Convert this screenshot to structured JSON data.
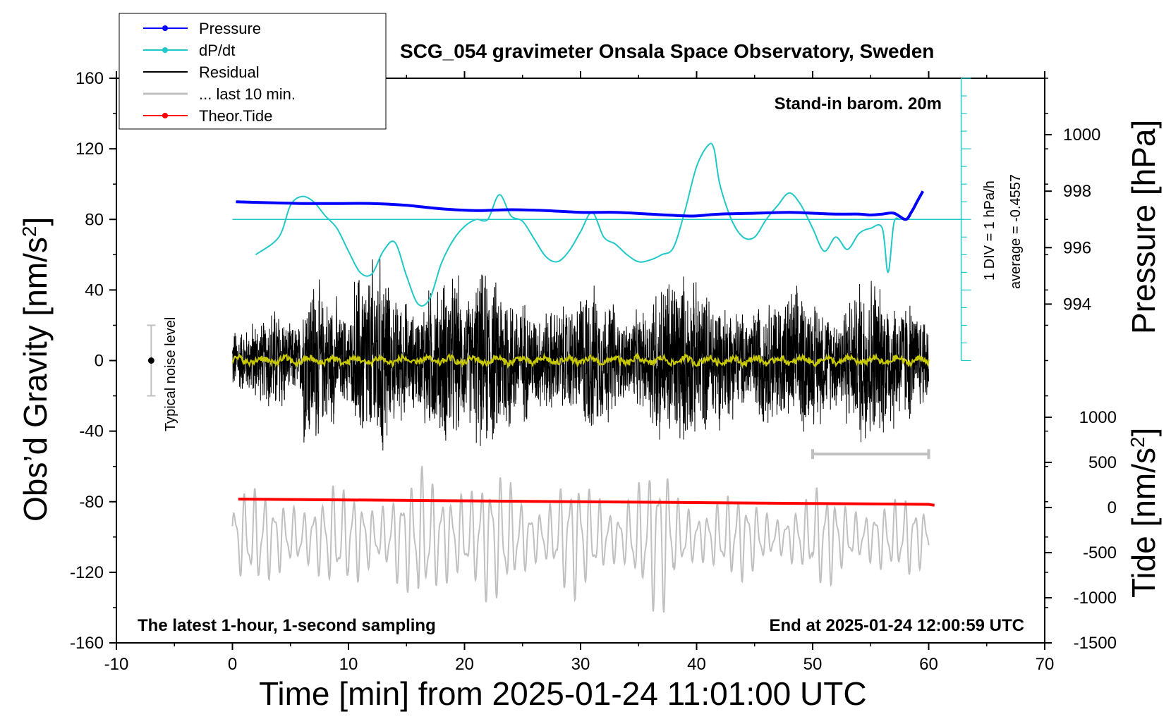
{
  "chart_data": {
    "type": "line",
    "title": "SCG_054 gravimeter Onsala Space Observatory, Sweden",
    "xlabel": "Time [min] from 2025-01-24 11:01:00 UTC",
    "ylabel_left": "Obs’d Gravity [nm/s",
    "ylabel_left_sup": "2",
    "ylabel_left_tail": "]",
    "ylabel_right_pressure": "Pressure [hPa]",
    "ylabel_right_tide": "Tide [nm/s",
    "ylabel_right_tide_sup": "2",
    "ylabel_right_tide_tail": "]",
    "xlim": [
      -10,
      70
    ],
    "ylim": [
      -160,
      160
    ],
    "x_ticks": [
      "-10",
      "0",
      "10",
      "20",
      "30",
      "40",
      "50",
      "60",
      "70"
    ],
    "y_ticks": [
      "160",
      "120",
      "80",
      "40",
      "0",
      "-40",
      "-80",
      "-120",
      "-160"
    ],
    "pressure_axis": {
      "range_in_gravity_units": [
        0,
        160
      ],
      "pressure_range": [
        992,
        1002
      ],
      "ticks": [
        "1000",
        "998",
        "996",
        "994"
      ]
    },
    "tide_axis": {
      "range_in_gravity_units": [
        -160,
        -27
      ],
      "tide_range": [
        -1500,
        1100
      ],
      "ticks": [
        "1000",
        "500",
        "0",
        "-500",
        "-1000",
        "-1500"
      ]
    },
    "annotations": {
      "barometer": "Stand-in barom. 20m",
      "latest": "The latest 1-hour, 1-second sampling",
      "end_time": "End at 2025-01-24 12:00:59 UTC",
      "noise": "Typical noise level",
      "div": "1 DIV = 1 hPa/h",
      "average": "average = -0.4557"
    },
    "legend": [
      {
        "label": "Pressure",
        "color": "#0000ff",
        "style": "line-dot"
      },
      {
        "label": "dP/dt",
        "color": "#20c8c8",
        "style": "line-dot"
      },
      {
        "label": "Residual",
        "color": "#000000",
        "style": "line"
      },
      {
        "label": "... last 10 min.",
        "color": "#c0c0c0",
        "style": "line"
      },
      {
        "label": "Theor.Tide",
        "color": "#ff0000",
        "style": "line-dot"
      }
    ],
    "noise_bar": {
      "x": -7,
      "center": 0,
      "half_range": 20
    },
    "last10_bar": {
      "x_start": 50,
      "x_end": 60,
      "y": -53
    },
    "pressure_baseline_y": 80,
    "series": [
      {
        "name": "Pressure",
        "color": "#0000ff",
        "unit": "gravity-axis units",
        "x": [
          0.3,
          3,
          6,
          9,
          12,
          15,
          18,
          21,
          24,
          27,
          30,
          33,
          36,
          39,
          40,
          42,
          45,
          48,
          50,
          52,
          54,
          55,
          56,
          57,
          58,
          58.5,
          59,
          59.5
        ],
        "y": [
          90,
          89.5,
          89,
          89,
          89,
          88,
          86,
          85,
          85.5,
          85,
          84,
          84,
          83,
          82,
          82,
          83,
          83.5,
          84,
          83.5,
          83,
          83,
          82.5,
          83,
          83.5,
          80,
          84,
          90,
          96
        ]
      },
      {
        "name": "dP/dt",
        "color": "#20c8c8",
        "unit": "gravity-axis units",
        "x": [
          2,
          4,
          5,
          6,
          7,
          8,
          9,
          10,
          11,
          12,
          13,
          14,
          15,
          16,
          17,
          18,
          19,
          20,
          21,
          22,
          23,
          24,
          25,
          26,
          27,
          28,
          29,
          30,
          31,
          32,
          33,
          34,
          35,
          36,
          37,
          38,
          39,
          40,
          41,
          41.5,
          42,
          43,
          44,
          45,
          46,
          47,
          48,
          49,
          50,
          51,
          52,
          53,
          54,
          55,
          56,
          56.5,
          57,
          57.5
        ],
        "y": [
          60,
          70,
          88,
          93,
          90,
          82,
          75,
          62,
          50,
          49,
          62,
          67,
          48,
          32,
          35,
          55,
          68,
          76,
          80,
          80,
          94,
          82,
          79,
          69,
          59,
          56,
          62,
          73,
          84,
          70,
          66,
          60,
          56,
          57,
          60,
          64,
          85,
          110,
          122,
          120,
          100,
          80,
          70,
          70,
          80,
          88,
          95,
          88,
          75,
          62,
          70,
          63,
          72,
          75,
          75,
          50,
          78,
          80
        ]
      },
      {
        "name": "Theor.Tide",
        "color": "#ff0000",
        "unit": "gravity-axis units",
        "x": [
          0.5,
          10,
          20,
          30,
          40,
          50,
          60,
          60.5
        ],
        "y": [
          -78.5,
          -79,
          -79.5,
          -80,
          -80.5,
          -81,
          -81.5,
          -82
        ]
      },
      {
        "name": "Residual",
        "color": "#000000",
        "unit": "nm/s2",
        "x_range": [
          0,
          60
        ],
        "envelope": [
          20,
          25,
          34,
          22,
          52,
          40,
          28,
          55,
          64,
          38,
          30,
          45,
          52,
          40,
          55,
          50,
          38,
          30,
          32,
          34,
          46,
          38,
          25,
          30,
          50,
          54,
          48,
          42,
          35,
          30,
          38,
          40,
          45,
          38,
          30,
          40,
          55,
          45,
          38,
          30
        ]
      },
      {
        "name": "... last 10 min.",
        "color": "#c0c0c0",
        "unit": "nm/s2",
        "x_range": [
          0,
          60
        ],
        "center": -100,
        "envelope": [
          28,
          30,
          34,
          26,
          30,
          38,
          32,
          34,
          42,
          48,
          40,
          38,
          34,
          30,
          36,
          32,
          30,
          40,
          45,
          30,
          28,
          26,
          24,
          22,
          25,
          30,
          28,
          26,
          22,
          24
        ]
      },
      {
        "name": "Smoothed",
        "color": "#c8c800",
        "unit": "nm/s2",
        "x_range": [
          0,
          60
        ],
        "amplitude": 3
      }
    ]
  }
}
